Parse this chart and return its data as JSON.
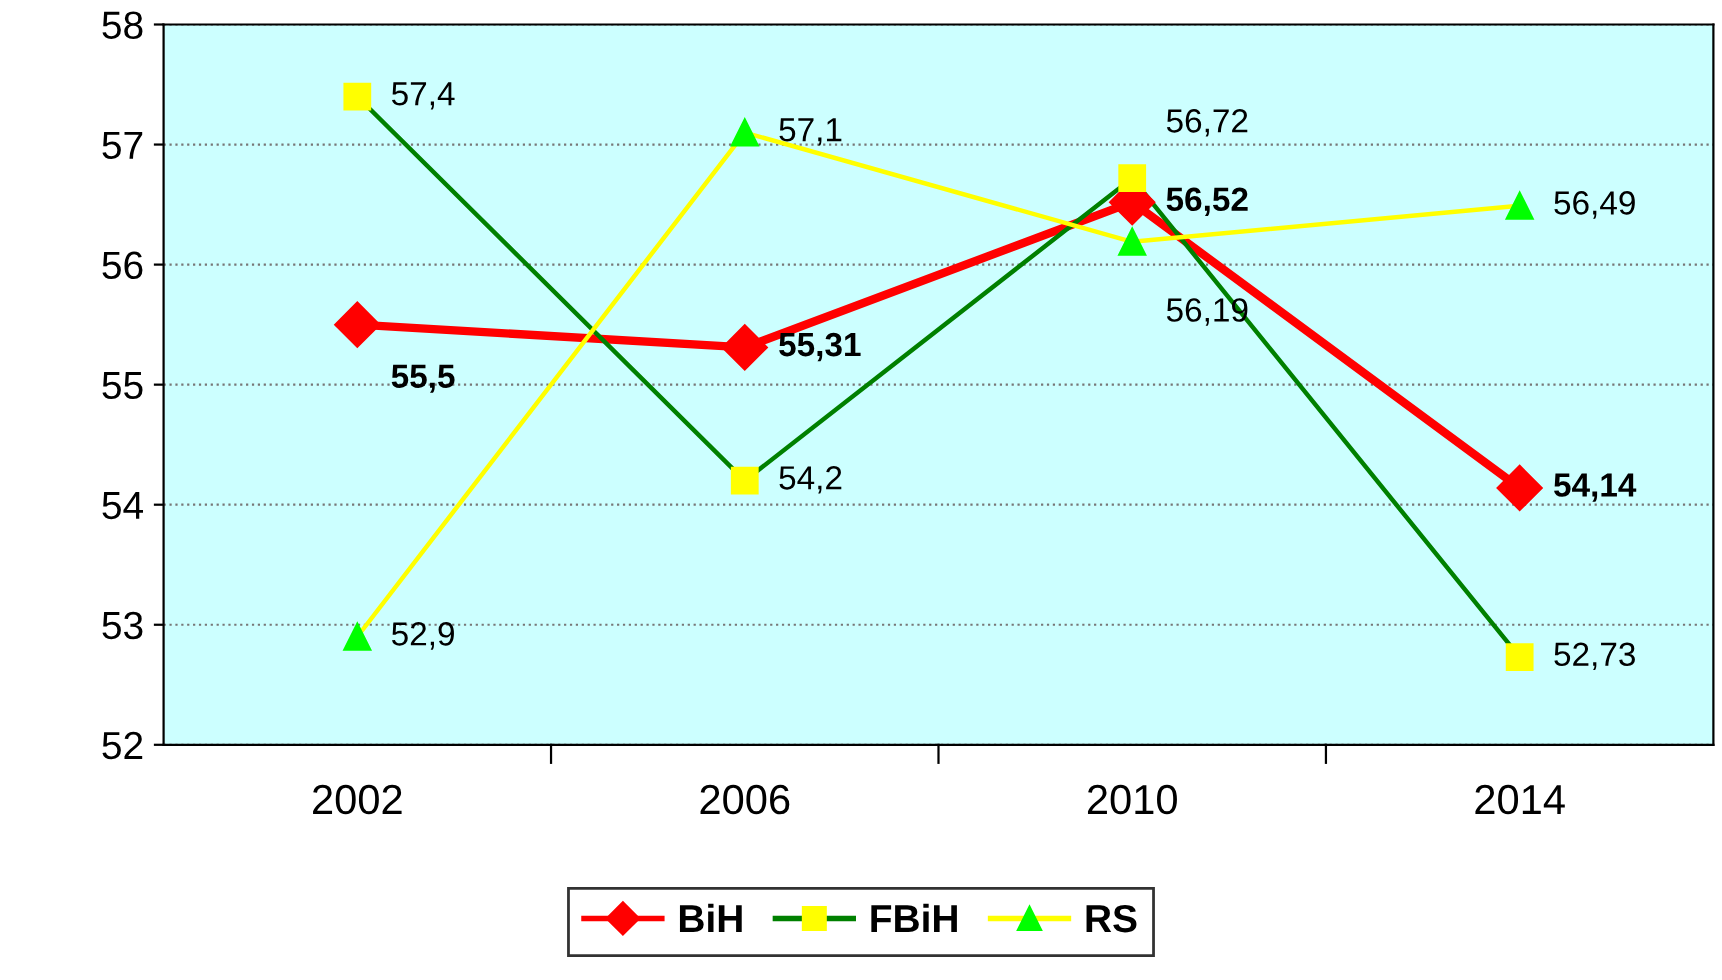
{
  "chart_data": {
    "type": "line",
    "categories": [
      "2002",
      "2006",
      "2010",
      "2014"
    ],
    "series": [
      {
        "name": "BiH",
        "color": "#ff0000",
        "marker": "diamond",
        "values": [
          55.5,
          55.31,
          56.52,
          54.14
        ],
        "value_labels": [
          "55,5",
          "55,31",
          "56,52",
          "54,14"
        ]
      },
      {
        "name": "FBiH",
        "color": "#008000",
        "colors": [
          "#ffff00",
          "#ffff00",
          "#ffff00",
          "#ffff00"
        ],
        "marker": "square",
        "values": [
          57.4,
          54.2,
          56.72,
          52.73
        ],
        "value_labels": [
          "57,4",
          "54,2",
          "56,72",
          "52,73"
        ]
      },
      {
        "name": "RS",
        "color": "#ffff00",
        "colors": [
          "#00ff00",
          "#00ff00",
          "#00ff00",
          "#00ff00"
        ],
        "marker": "triangle",
        "values": [
          52.9,
          57.1,
          56.19,
          56.49
        ],
        "value_labels": [
          "52,9",
          "57,1",
          "56,19",
          "56,49"
        ]
      }
    ],
    "ylim": [
      52,
      58
    ],
    "yticks": [
      52,
      53,
      54,
      55,
      56,
      57,
      58
    ],
    "grid": "y",
    "legend": "bottom"
  }
}
